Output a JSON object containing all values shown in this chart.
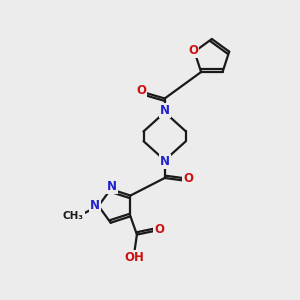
{
  "bg_color": "#ececec",
  "bond_color": "#1a1a1a",
  "N_color": "#2222cc",
  "O_color": "#cc1111",
  "line_width": 1.6,
  "figsize": [
    3.0,
    3.0
  ],
  "dpi": 100,
  "xlim": [
    0,
    10
  ],
  "ylim": [
    0,
    10
  ]
}
